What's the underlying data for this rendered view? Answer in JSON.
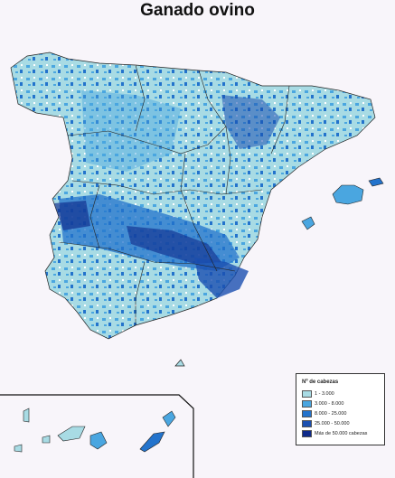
{
  "title": "Ganado ovino",
  "legend": {
    "title": "Nº de cabezas",
    "items": [
      {
        "label": "1 - 3.000",
        "color": "#a8dbe4"
      },
      {
        "label": "3.000 - 8.000",
        "color": "#4aa6e0"
      },
      {
        "label": "8.000 - 25.000",
        "color": "#2373cc"
      },
      {
        "label": "25.000 - 50.000",
        "color": "#1a4fb0"
      },
      {
        "label": "Más de 50.000 cabezas",
        "color": "#0e2a8a"
      }
    ]
  },
  "colors": {
    "background": "#f8f5fa",
    "boundary": "#222222",
    "inset_frame": "#111111"
  }
}
